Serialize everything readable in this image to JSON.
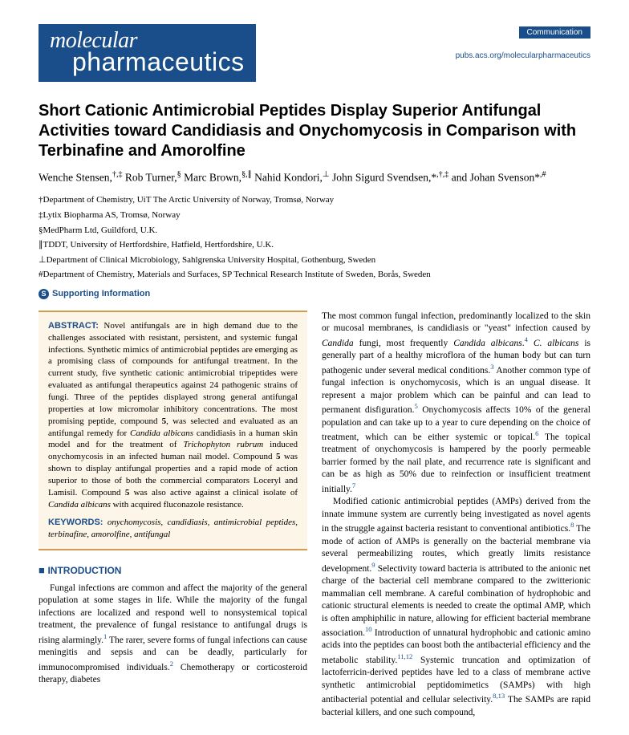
{
  "journal": {
    "logo_top": "molecular",
    "logo_bottom": "pharmaceutics",
    "badge": "Communication",
    "link": "pubs.acs.org/molecularpharmaceutics"
  },
  "title": "Short Cationic Antimicrobial Peptides Display Superior Antifungal Activities toward Candidiasis and Onychomycosis in Comparison with Terbinafine and Amorolfine",
  "authors_html": "Wenche Stensen,<span class='sup-black'>†,‡</span> Rob Turner,<span class='sup-black'>§</span> Marc Brown,<span class='sup-black'>§,∥</span> Nahid Kondori,<span class='sup-black'>⊥</span> John Sigurd Svendsen,*<span class='sup-black'>,†,‡</span> and Johan Svenson*<span class='sup-black'>,#</span>",
  "affiliations": [
    "†Department of Chemistry, UiT The Arctic University of Norway, Tromsø, Norway",
    "‡Lytix Biopharma AS, Tromsø, Norway",
    "§MedPharm Ltd, Guildford, U.K.",
    "∥TDDT, University of Hertfordshire, Hatfield, Hertfordshire, U.K.",
    "⊥Department of Clinical Microbiology, Sahlgrenska University Hospital, Gothenburg, Sweden",
    "#Department of Chemistry, Materials and Surfaces, SP Technical Research Institute of Sweden, Borås, Sweden"
  ],
  "supporting_label": "Supporting Information",
  "abstract": {
    "label": "ABSTRACT:",
    "text": "Novel antifungals are in high demand due to the challenges associated with resistant, persistent, and systemic fungal infections. Synthetic mimics of antimicrobial peptides are emerging as a promising class of compounds for antifungal treatment. In the current study, five synthetic cationic antimicrobial tripeptides were evaluated as antifungal therapeutics against 24 pathogenic strains of fungi. Three of the peptides displayed strong general antifungal properties at low micromolar inhibitory concentrations. The most promising peptide, compound 5, was selected and evaluated as an antifungal remedy for Candida albicans candidiasis in a human skin model and for the treatment of Trichophyton rubrum induced onychomycosis in an infected human nail model. Compound 5 was shown to display antifungal properties and a rapid mode of action superior to those of both the commercial comparators Loceryl and Lamisil. Compound 5 was also active against a clinical isolate of Candida albicans with acquired fluconazole resistance.",
    "keywords_label": "KEYWORDS:",
    "keywords": "onychomycosis, candidiasis, antimicrobial peptides, terbinafine, amorolfine, antifungal"
  },
  "intro_heading": "INTRODUCTION",
  "intro_p1": "Fungal infections are common and affect the majority of the general population at some stages in life. While the majority of the fungal infections are localized and respond well to nonsystemical topical treatment, the prevalence of fungal resistance to antifungal drugs is rising alarmingly.¹ The rarer, severe forms of fungal infections can cause meningitis and sepsis and can be deadly, particularly for immunocompromised individuals.² Chemotherapy or corticosteroid therapy, diabetes",
  "col2_p1": "The most common fungal infection, predominantly localized to the skin or mucosal membranes, is candidiasis or \"yeast\" infection caused by Candida fungi, most frequently Candida albicans.⁴ C. albicans is generally part of a healthy microflora of the human body but can turn pathogenic under several medical conditions.³ Another common type of fungal infection is onychomycosis, which is an ungual disease. It represent a major problem which can be painful and can lead to permanent disfiguration.⁵ Onychomycosis affects 10% of the general population and can take up to a year to cure depending on the choice of treatment, which can be either systemic or topical.⁶ The topical treatment of onychomycosis is hampered by the poorly permeable barrier formed by the nail plate, and recurrence rate is significant and can be as high as 50% due to reinfection or insufficient treatment initially.⁷",
  "col2_p2": "Modified cationic antimicrobial peptides (AMPs) derived from the innate immune system are currently being investigated as novel agents in the struggle against bacteria resistant to conventional antibiotics.⁸ The mode of action of AMPs is generally on the bacterial membrane via several permeabilizing routes, which greatly limits resistance development.⁹ Selectivity toward bacteria is attributed to the anionic net charge of the bacterial cell membrane compared to the zwitterionic mammalian cell membrane. A careful combination of hydrophobic and cationic structural elements is needed to create the optimal AMP, which is often amphiphilic in nature, allowing for efficient bacterial membrane association.¹⁰ Introduction of unnatural hydrophobic and cationic amino acids into the peptides can boost both the antibacterial efficiency and the metabolic stability.¹¹,¹² Systemic truncation and optimization of lactoferricin-derived peptides have led to a class of membrane active synthetic antimicrobial peptidomimetics (SAMPs) with high antibacterial potential and cellular selectivity.⁸,¹³ The SAMPs are rapid bacterial killers, and one such compound,",
  "colors": {
    "brand": "#1a4e8a",
    "abstract_bg": "#fdf6e8",
    "abstract_border": "#ce9e53",
    "text": "#000000",
    "background": "#ffffff"
  }
}
